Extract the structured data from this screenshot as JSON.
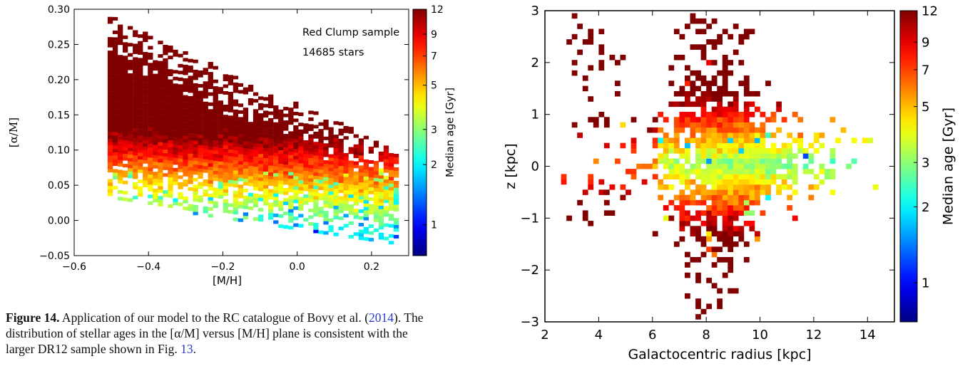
{
  "caption": {
    "label": "Figure 14.",
    "part1": " Application of our model to the RC catalogue of Bovy et al. (",
    "ref1": "2014",
    "part2": "). The distribution of stellar ages in the [α/M] versus [M/H] plane is consistent with the larger DR12 sample shown in Fig. ",
    "ref2": "13",
    "part3": "."
  },
  "chart_data": [
    {
      "type": "heatmap",
      "xlabel": "[M/H]",
      "ylabel": "[α/M]",
      "xlim": [
        -0.6,
        0.3
      ],
      "ylim": [
        -0.05,
        0.3
      ],
      "xticks": [
        "−0.6",
        "−0.4",
        "−0.2",
        "0.0",
        "0.2"
      ],
      "xtick_values": [
        -0.6,
        -0.4,
        -0.2,
        0.0,
        0.2
      ],
      "yticks": [
        "−0.05",
        "0.00",
        "0.05",
        "0.10",
        "0.15",
        "0.20",
        "0.25",
        "0.30"
      ],
      "ytick_values": [
        -0.05,
        0.0,
        0.05,
        0.1,
        0.15,
        0.2,
        0.25,
        0.3
      ],
      "annotations": [
        "Red Clump sample",
        "14685 stars"
      ],
      "colorbar": {
        "label": "Median age [Gyr]",
        "scale": "log",
        "range": [
          0.7,
          12
        ],
        "ticks": [
          "1",
          "2",
          "3",
          "5",
          "7",
          "9",
          "12"
        ],
        "tick_values": [
          1,
          2,
          3,
          5,
          7,
          9,
          12
        ]
      },
      "colormap": "jet",
      "median_age_trend": [
        {
          "alpha_m": 0.25,
          "age": 9.5
        },
        {
          "alpha_m": 0.2,
          "age": 8.0
        },
        {
          "alpha_m": 0.15,
          "age": 6.0
        },
        {
          "alpha_m": 0.1,
          "age": 4.5
        },
        {
          "alpha_m": 0.05,
          "age": 3.5
        },
        {
          "alpha_m": 0.0,
          "age": 2.5
        }
      ]
    },
    {
      "type": "heatmap",
      "xlabel": "Galactocentric radius [kpc]",
      "ylabel": "z [kpc]",
      "xlim": [
        2,
        15
      ],
      "ylim": [
        -3,
        3
      ],
      "xticks": [
        "2",
        "4",
        "6",
        "8",
        "10",
        "12",
        "14"
      ],
      "xtick_values": [
        2,
        4,
        6,
        8,
        10,
        12,
        14
      ],
      "yticks": [
        "−3",
        "−2",
        "−1",
        "0",
        "1",
        "2",
        "3"
      ],
      "ytick_values": [
        -3,
        -2,
        -1,
        0,
        1,
        2,
        3
      ],
      "colorbar": {
        "label": "Median age [Gyr]",
        "scale": "log",
        "range": [
          0.7,
          12
        ],
        "ticks": [
          "1",
          "2",
          "3",
          "5",
          "7",
          "9",
          "12"
        ],
        "tick_values": [
          1,
          2,
          3,
          5,
          7,
          9,
          12
        ]
      },
      "colormap": "jet",
      "median_age_trend": [
        {
          "abs_z": 0.0,
          "age": 3.5
        },
        {
          "abs_z": 0.5,
          "age": 5.0
        },
        {
          "abs_z": 1.0,
          "age": 6.5
        },
        {
          "abs_z": 2.0,
          "age": 9.0
        }
      ]
    }
  ]
}
